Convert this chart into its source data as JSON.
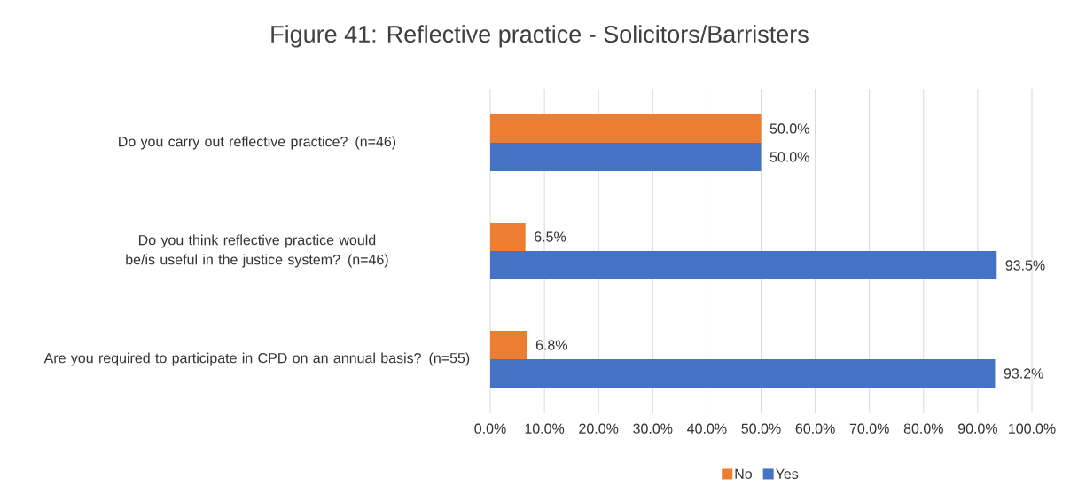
{
  "chart_data": {
    "type": "bar",
    "orientation": "horizontal",
    "title": "Figure 41: Reflective practice - Solicitors/Barristers",
    "categories": [
      "Do you carry out reflective practice? (n=46)",
      "Do you think reflective practice would be/is useful in the justice system? (n=46)",
      "Are you required to participate in CPD on an annual basis? (n=55)"
    ],
    "series": [
      {
        "name": "No",
        "color": "#ed7d31",
        "values": [
          50.0,
          6.5,
          6.8
        ],
        "value_labels": [
          "50.0%",
          "6.5%",
          "6.8%"
        ]
      },
      {
        "name": "Yes",
        "color": "#4472c4",
        "values": [
          50.0,
          93.5,
          93.2
        ],
        "value_labels": [
          "50.0%",
          "93.5%",
          "93.2%"
        ]
      }
    ],
    "xlim": [
      0,
      100
    ],
    "xticks": [
      {
        "value": 0,
        "label": "0.0%"
      },
      {
        "value": 10,
        "label": "10.0%"
      },
      {
        "value": 20,
        "label": "20.0%"
      },
      {
        "value": 30,
        "label": "30.0%"
      },
      {
        "value": 40,
        "label": "40.0%"
      },
      {
        "value": 50,
        "label": "50.0%"
      },
      {
        "value": 60,
        "label": "60.0%"
      },
      {
        "value": 70,
        "label": "70.0%"
      },
      {
        "value": 80,
        "label": "80.0%"
      },
      {
        "value": 90,
        "label": "90.0%"
      },
      {
        "value": 100,
        "label": "100.0%"
      }
    ],
    "grid": "x",
    "legend": "bottom"
  }
}
